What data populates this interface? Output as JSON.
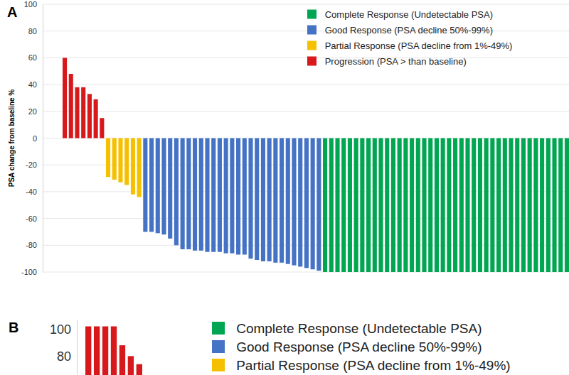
{
  "chart_data": [
    {
      "type": "bar",
      "title": "A",
      "y_label": "PSA change from baseline %",
      "ylim": [
        -100,
        100
      ],
      "yticks": [
        -100,
        -80,
        -60,
        -40,
        -20,
        0,
        20,
        40,
        60,
        80,
        100
      ],
      "grid": true,
      "legend": "top-right",
      "series": [
        {
          "name": "Complete Response (Undetectable PSA)",
          "color": "#00a651",
          "values": []
        },
        {
          "name": "Good Response (PSA decline 50%-99%)",
          "color": "#4472c4",
          "values": []
        },
        {
          "name": "Partial Response (PSA decline from 1%-49%)",
          "color": "#f5c000",
          "values": []
        },
        {
          "name": "Progression (PSA > than baseline)",
          "color": "#d7191c",
          "values": []
        }
      ],
      "order": [
        3,
        2,
        1,
        0
      ],
      "bars": [
        [
          60,
          48,
          38,
          38,
          33,
          29,
          15
        ],
        [
          -29,
          -31,
          -33,
          -35,
          -42,
          -44
        ],
        [
          -70,
          -70,
          -71,
          -72,
          -75,
          -80,
          -83,
          -83,
          -84,
          -84,
          -85,
          -85,
          -85,
          -86,
          -86,
          -87,
          -87,
          -90,
          -91,
          -92,
          -92,
          -93,
          -93,
          -94,
          -95,
          -96,
          -97,
          -98,
          -99
        ],
        [
          -100,
          -100,
          -100,
          -100,
          -100,
          -100,
          -100,
          -100,
          -100,
          -100,
          -100,
          -100,
          -100,
          -100,
          -100,
          -100,
          -100,
          -100,
          -100,
          -100,
          -100,
          -100,
          -100,
          -100,
          -100,
          -100,
          -100,
          -100,
          -100,
          -100,
          -100,
          -100,
          -100,
          -100,
          -100,
          -100,
          -100,
          -100,
          -100,
          -100
        ]
      ]
    },
    {
      "type": "bar",
      "title": "B",
      "ylim": [
        66,
        107
      ],
      "yticks": [
        80,
        100
      ],
      "grid": false,
      "legend": "top-right",
      "series": [
        {
          "name": "Complete Response (Undetectable PSA)",
          "color": "#00a651",
          "values": []
        },
        {
          "name": "Good Response (PSA decline 50%-99%)",
          "color": "#4472c4",
          "values": []
        },
        {
          "name": "Partial Response (PSA decline from 1%-49%)",
          "color": "#f5c000",
          "values": []
        }
      ],
      "order": [],
      "bars": [
        [
          102,
          102,
          102,
          102,
          88,
          80,
          74
        ]
      ],
      "bar_color": "#d7191c"
    }
  ]
}
